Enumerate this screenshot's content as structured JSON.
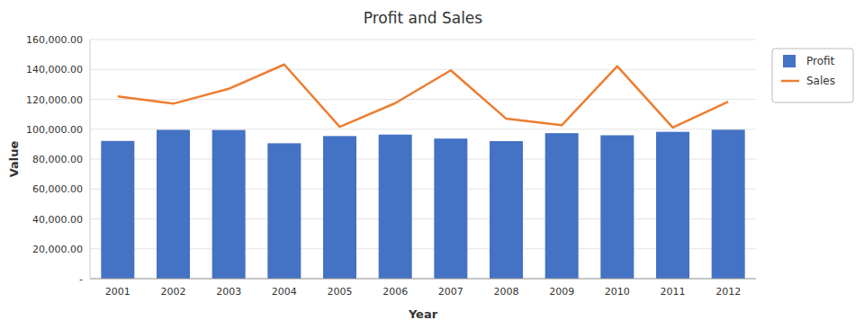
{
  "chart_data": {
    "type": "bar",
    "title": "Profit and Sales",
    "xlabel": "Year",
    "ylabel": "Value",
    "categories": [
      "2001",
      "2002",
      "2003",
      "2004",
      "2005",
      "2006",
      "2007",
      "2008",
      "2009",
      "2010",
      "2011",
      "2012"
    ],
    "series": [
      {
        "name": "Profit",
        "type": "bar",
        "color": "#4472C4",
        "values": [
          92164,
          99560,
          99470,
          90602,
          95420,
          96414,
          93746,
          92049,
          97364,
          95956,
          98261,
          99645
        ]
      },
      {
        "name": "Sales",
        "type": "line",
        "color": "#ED7D31",
        "values": [
          122021,
          117090,
          127038,
          143316,
          101623,
          117450,
          139397,
          107012,
          102643,
          142179,
          101168,
          118449
        ]
      }
    ],
    "ylim": [
      0,
      160000
    ],
    "yticks": [
      {
        "value": 0,
        "label": "-"
      },
      {
        "value": 20000,
        "label": "20,000.00"
      },
      {
        "value": 40000,
        "label": "40,000.00"
      },
      {
        "value": 60000,
        "label": "60,000.00"
      },
      {
        "value": 80000,
        "label": "80,000.00"
      },
      {
        "value": 100000,
        "label": "100,000.00"
      },
      {
        "value": 120000,
        "label": "120,000.00"
      },
      {
        "value": 140000,
        "label": "140,000.00"
      },
      {
        "value": 160000,
        "label": "160,000.00"
      }
    ],
    "grid": true,
    "legend": "right"
  }
}
